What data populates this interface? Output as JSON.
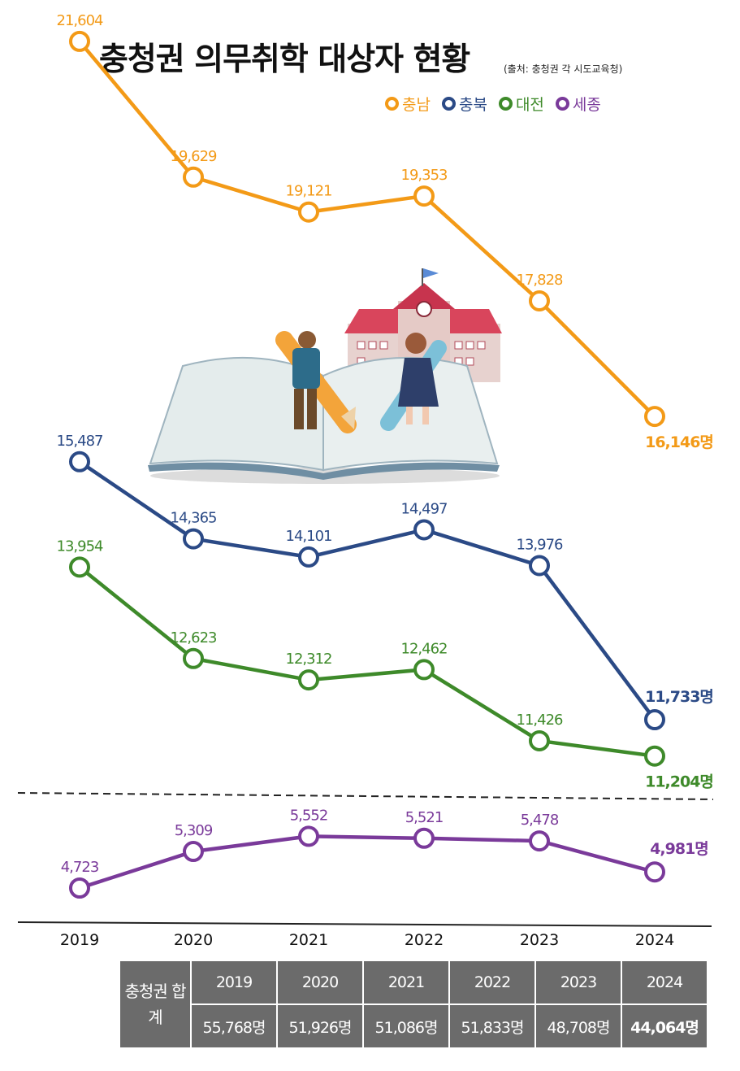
{
  "title": "충청권 의무취학 대상자 현황",
  "source": "(출처: 충청권 각 시도교육청)",
  "legend": [
    {
      "label": "충남",
      "color": "#F39A17"
    },
    {
      "label": "충북",
      "color": "#2B4A86"
    },
    {
      "label": "대전",
      "color": "#3E8A2A"
    },
    {
      "label": "세종",
      "color": "#7A3A9A"
    }
  ],
  "chart_data": {
    "type": "line",
    "title": "충청권 의무취학 대상자 현황",
    "categories": [
      "2019",
      "2020",
      "2021",
      "2022",
      "2023",
      "2024"
    ],
    "series": [
      {
        "name": "충남",
        "color": "#F39A17",
        "values": [
          21604,
          19629,
          19121,
          19353,
          17828,
          16146
        ],
        "labels": [
          "21,604",
          "19,629",
          "19,121",
          "19,353",
          "17,828",
          "16,146명"
        ]
      },
      {
        "name": "충북",
        "color": "#2B4A86",
        "values": [
          15487,
          14365,
          14101,
          14497,
          13976,
          11733
        ],
        "labels": [
          "15,487",
          "14,365",
          "14,101",
          "14,497",
          "13,976",
          "11,733명"
        ]
      },
      {
        "name": "대전",
        "color": "#3E8A2A",
        "values": [
          13954,
          12623,
          12312,
          12462,
          11426,
          11204
        ],
        "labels": [
          "13,954",
          "12,623",
          "12,312",
          "12,462",
          "11,426",
          "11,204명"
        ]
      },
      {
        "name": "세종",
        "color": "#7A3A9A",
        "values": [
          4723,
          5309,
          5552,
          5521,
          5478,
          4981
        ],
        "labels": [
          "4,723",
          "5,309",
          "5,552",
          "5,521",
          "5,478",
          "4,981명"
        ]
      }
    ]
  },
  "table": {
    "header": "충청권 합계",
    "years": [
      "2019",
      "2020",
      "2021",
      "2022",
      "2023",
      "2024"
    ],
    "values": [
      "55,768명",
      "51,926명",
      "51,086명",
      "51,833명",
      "48,708명",
      "44,064명"
    ]
  }
}
